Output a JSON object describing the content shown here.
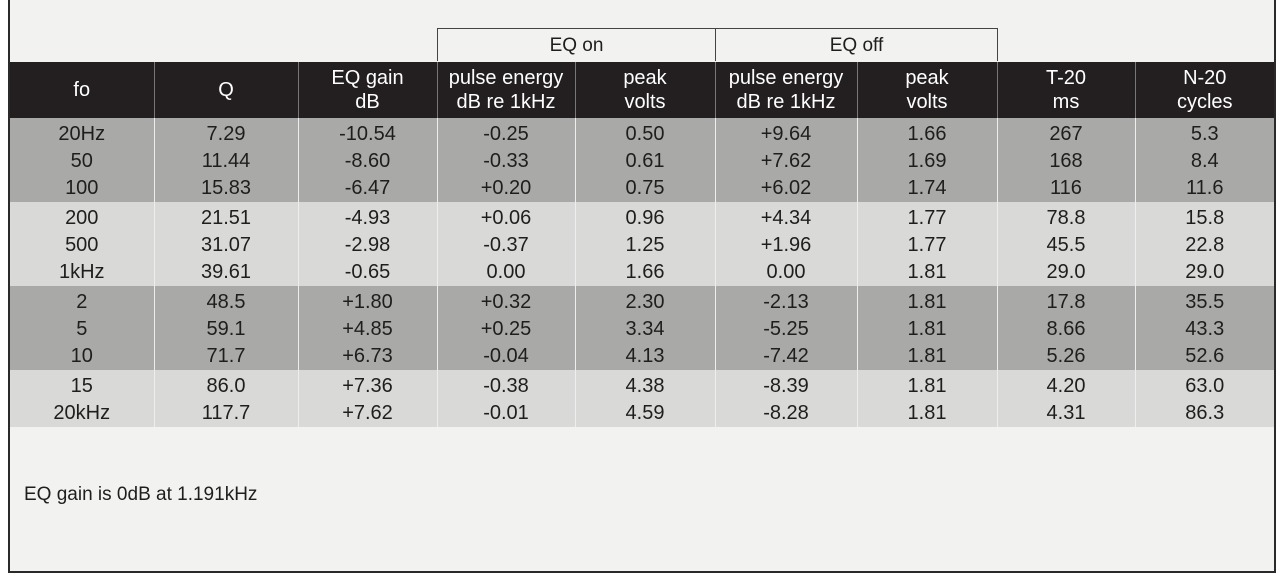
{
  "table": {
    "group_headers": [
      {
        "label": "EQ on",
        "start": 3,
        "span": 2
      },
      {
        "label": "EQ off",
        "start": 5,
        "span": 2
      }
    ],
    "headers": [
      [
        "fo"
      ],
      [
        "Q"
      ],
      [
        "EQ gain",
        "dB"
      ],
      [
        "pulse energy",
        "dB re 1kHz"
      ],
      [
        "peak",
        "volts"
      ],
      [
        "pulse energy",
        "dB re 1kHz"
      ],
      [
        "peak",
        "volts"
      ],
      [
        "T-20",
        "ms"
      ],
      [
        "N-20",
        "cycles"
      ]
    ],
    "groups": [
      [
        [
          "20Hz",
          "7.29",
          "-10.54",
          "-0.25",
          "0.50",
          "+9.64",
          "1.66",
          "267",
          "5.3"
        ],
        [
          "50",
          "11.44",
          "-8.60",
          "-0.33",
          "0.61",
          "+7.62",
          "1.69",
          "168",
          "8.4"
        ],
        [
          "100",
          "15.83",
          "-6.47",
          "+0.20",
          "0.75",
          "+6.02",
          "1.74",
          "116",
          "11.6"
        ]
      ],
      [
        [
          "200",
          "21.51",
          "-4.93",
          "+0.06",
          "0.96",
          "+4.34",
          "1.77",
          "78.8",
          "15.8"
        ],
        [
          "500",
          "31.07",
          "-2.98",
          "-0.37",
          "1.25",
          "+1.96",
          "1.77",
          "45.5",
          "22.8"
        ],
        [
          "1kHz",
          "39.61",
          "-0.65",
          "0.00",
          "1.66",
          "0.00",
          "1.81",
          "29.0",
          "29.0"
        ]
      ],
      [
        [
          "2",
          "48.5",
          "+1.80",
          "+0.32",
          "2.30",
          "-2.13",
          "1.81",
          "17.8",
          "35.5"
        ],
        [
          "5",
          "59.1",
          "+4.85",
          "+0.25",
          "3.34",
          "-5.25",
          "1.81",
          "8.66",
          "43.3"
        ],
        [
          "10",
          "71.7",
          "+6.73",
          "-0.04",
          "4.13",
          "-7.42",
          "1.81",
          "5.26",
          "52.6"
        ]
      ],
      [
        [
          "15",
          "86.0",
          "+7.36",
          "-0.38",
          "4.38",
          "-8.39",
          "1.81",
          "4.20",
          "63.0"
        ],
        [
          "20kHz",
          "117.7",
          "+7.62",
          "-0.01",
          "4.59",
          "-8.28",
          "1.81",
          "4.31",
          "86.3"
        ]
      ]
    ],
    "footnote": "EQ gain is 0dB at 1.191kHz"
  }
}
